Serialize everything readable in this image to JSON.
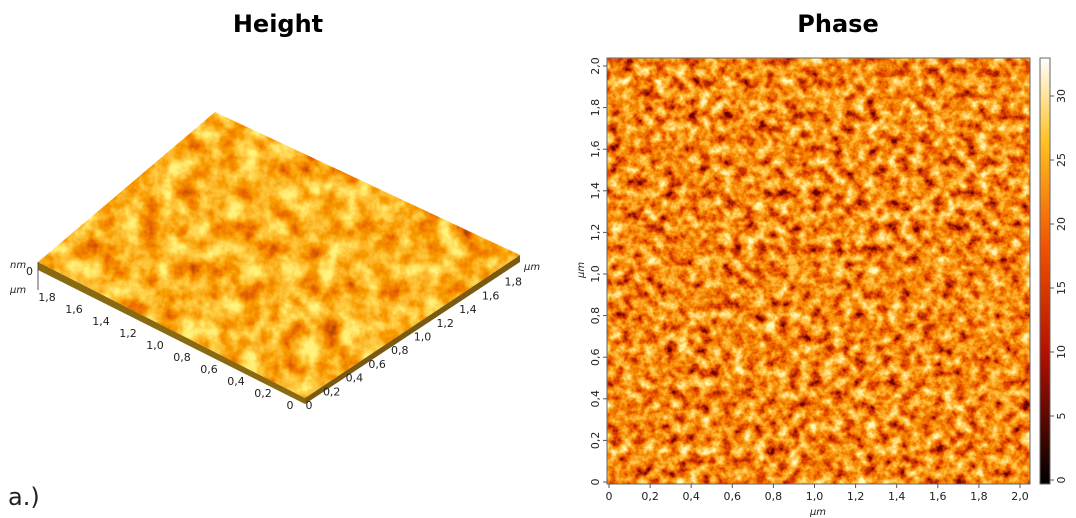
{
  "label": "a.)",
  "height_panel": {
    "title": "Height",
    "z_unit": "nm",
    "z_tick": "0",
    "left_axis": {
      "unit": "µm",
      "ticks": [
        "0",
        "0,2",
        "0,4",
        "0,6",
        "0,8",
        "1,0",
        "1,2",
        "1,4",
        "1,6",
        "1,8"
      ]
    },
    "right_axis": {
      "unit": "µm",
      "ticks": [
        "0",
        "0,2",
        "0,4",
        "0,6",
        "0,8",
        "1,0",
        "1,2",
        "1,4",
        "1,6",
        "1,8"
      ]
    }
  },
  "phase_panel": {
    "title": "Phase",
    "x_axis": {
      "unit": "µm",
      "ticks": [
        "0",
        "0,2",
        "0,4",
        "0,6",
        "0,8",
        "1,0",
        "1,2",
        "1,4",
        "1,6",
        "1,8",
        "2,0"
      ]
    },
    "y_axis": {
      "unit": "µm",
      "ticks": [
        "0",
        "0,2",
        "0,4",
        "0,6",
        "0,8",
        "1,0",
        "1,2",
        "1,4",
        "1,6",
        "1,8",
        "2,0"
      ]
    },
    "colorbar_ticks": [
      "0",
      "5",
      "10",
      "15",
      "20",
      "25",
      "30"
    ]
  }
}
